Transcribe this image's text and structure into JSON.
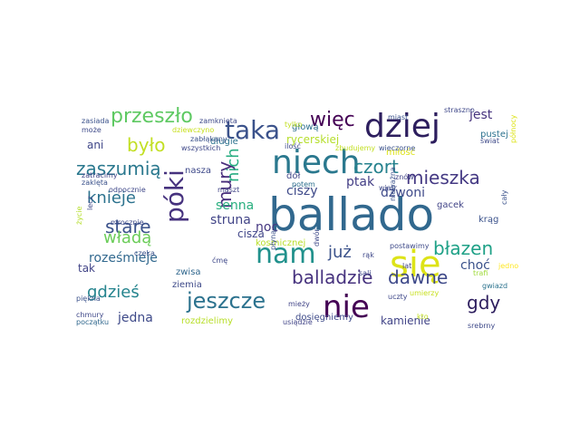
{
  "word_cloud": {
    "words": [
      {
        "text": "ballado",
        "color": "#31688e"
      },
      {
        "text": "się",
        "color": "#dde318"
      },
      {
        "text": "niech",
        "color": "#2a788e"
      },
      {
        "text": "dziej",
        "color": "#2d1e5e"
      },
      {
        "text": "nie",
        "color": "#440154"
      },
      {
        "text": "nam",
        "color": "#21918c"
      },
      {
        "text": "póki",
        "color": "#46327e"
      },
      {
        "text": "taka",
        "color": "#3b528b"
      },
      {
        "text": "jeszcze",
        "color": "#2c728e"
      },
      {
        "text": "przeszło",
        "color": "#5ec962"
      },
      {
        "text": "więc",
        "color": "#440154"
      },
      {
        "text": "zaszumią",
        "color": "#2a788e"
      },
      {
        "text": "mury",
        "color": "#472d7b"
      },
      {
        "text": "czort",
        "color": "#26828e"
      },
      {
        "text": "było",
        "color": "#c2df23"
      },
      {
        "text": "stare",
        "color": "#3b528b"
      },
      {
        "text": "mieszka",
        "color": "#443983"
      },
      {
        "text": "gdy",
        "color": "#2d1e5e"
      },
      {
        "text": "błazen",
        "color": "#1fa187"
      },
      {
        "text": "dawne",
        "color": "#3e4989"
      },
      {
        "text": "balladzie",
        "color": "#46327e"
      },
      {
        "text": "gdzieś",
        "color": "#25848e"
      },
      {
        "text": "knieje",
        "color": "#2c728e"
      },
      {
        "text": "władą",
        "color": "#6ccd5a"
      },
      {
        "text": "nich",
        "color": "#27ad81"
      },
      {
        "text": "już",
        "color": "#3b528b"
      },
      {
        "text": "jedna",
        "color": "#3e4a89"
      },
      {
        "text": "roześmieje",
        "color": "#31688e"
      },
      {
        "text": "senna",
        "color": "#29af7f"
      },
      {
        "text": "struna",
        "color": "#414487"
      },
      {
        "text": "choć",
        "color": "#3b528b"
      },
      {
        "text": "ciszy",
        "color": "#3e4989"
      },
      {
        "text": "noc",
        "color": "#453781"
      },
      {
        "text": "jest",
        "color": "#46337e"
      },
      {
        "text": "dzwoni",
        "color": "#3e4a89"
      },
      {
        "text": "ptak",
        "color": "#433e85"
      },
      {
        "text": "kamienie",
        "color": "#414487"
      },
      {
        "text": "cisza",
        "color": "#404688"
      },
      {
        "text": "ani",
        "color": "#3f4788"
      },
      {
        "text": "tak",
        "color": "#414487"
      },
      {
        "text": "rycerskiej",
        "color": "#b5de2b"
      },
      {
        "text": "głową",
        "color": "#2d708e"
      },
      {
        "text": "długie",
        "color": "#2c728e"
      },
      {
        "text": "nasza",
        "color": "#3e4989"
      },
      {
        "text": "kosmicznej",
        "color": "#b8de29"
      },
      {
        "text": "dół",
        "color": "#404688"
      },
      {
        "text": "zwisa",
        "color": "#31688e"
      },
      {
        "text": "ziemia",
        "color": "#3e4a89"
      },
      {
        "text": "rozdzielimy",
        "color": "#b8de29"
      },
      {
        "text": "pustej",
        "color": "#2c728e"
      },
      {
        "text": "gacek",
        "color": "#414487"
      },
      {
        "text": "miłość",
        "color": "#dde318"
      },
      {
        "text": "krąg",
        "color": "#3b528b"
      },
      {
        "text": "cały",
        "color": "#3b528b"
      },
      {
        "text": "dosięgniemy",
        "color": "#3e4a89"
      },
      {
        "text": "usiądzie",
        "color": "#414487"
      },
      {
        "text": "srebrny",
        "color": "#3e4989"
      },
      {
        "text": "uczty",
        "color": "#3f4889"
      },
      {
        "text": "umierzy",
        "color": "#c8e020"
      },
      {
        "text": "gwiazd",
        "color": "#2c738e"
      },
      {
        "text": "kto",
        "color": "#c2df23"
      },
      {
        "text": "trafi",
        "color": "#9fda3a"
      },
      {
        "text": "jedno",
        "color": "#fde725"
      },
      {
        "text": "północy",
        "color": "#dde318"
      },
      {
        "text": "świat",
        "color": "#3e4a89"
      },
      {
        "text": "potem",
        "color": "#2d708e"
      },
      {
        "text": "zasiada",
        "color": "#3b528b"
      },
      {
        "text": "może",
        "color": "#3e4a89"
      },
      {
        "text": "zatracimy",
        "color": "#414487"
      },
      {
        "text": "zaklęta",
        "color": "#3b528b"
      },
      {
        "text": "odpocznie",
        "color": "#3f4889"
      },
      {
        "text": "piękna",
        "color": "#3b528b"
      },
      {
        "text": "chmury",
        "color": "#3f4889"
      },
      {
        "text": "początku",
        "color": "#31688e"
      },
      {
        "text": "życie",
        "color": "#b5de2b"
      },
      {
        "text": "lecz",
        "color": "#3e4989"
      },
      {
        "text": "mrocznie",
        "color": "#3e4a89"
      },
      {
        "text": "czeka",
        "color": "#3b528b"
      },
      {
        "text": "maszt",
        "color": "#414487"
      },
      {
        "text": "zabłąkany",
        "color": "#3b528b"
      },
      {
        "text": "wszystkich",
        "color": "#3f4889"
      },
      {
        "text": "zamknięta",
        "color": "#3e4989"
      },
      {
        "text": "dziewczyno",
        "color": "#c8e020"
      },
      {
        "text": "tylko",
        "color": "#c2df23"
      },
      {
        "text": "ilość",
        "color": "#3e4a89"
      },
      {
        "text": "straszno",
        "color": "#3f4889"
      },
      {
        "text": "miast",
        "color": "#3b528b"
      },
      {
        "text": "zbudujemy",
        "color": "#c2df23"
      },
      {
        "text": "wieczorne",
        "color": "#3b528b"
      },
      {
        "text": "znów",
        "color": "#414487"
      },
      {
        "text": "wiatr",
        "color": "#3e4989"
      },
      {
        "text": "nieważna",
        "color": "#3b528b"
      },
      {
        "text": "postawimy",
        "color": "#3e4a89"
      },
      {
        "text": "lat",
        "color": "#414487"
      },
      {
        "text": "sali",
        "color": "#3f4889"
      },
      {
        "text": "rąk",
        "color": "#3f4889"
      },
      {
        "text": "dwór",
        "color": "#3e4989"
      },
      {
        "text": "płyną",
        "color": "#3b528b"
      },
      {
        "text": "mieży",
        "color": "#414487"
      },
      {
        "text": "ćmę",
        "color": "#3f4889"
      }
    ]
  }
}
